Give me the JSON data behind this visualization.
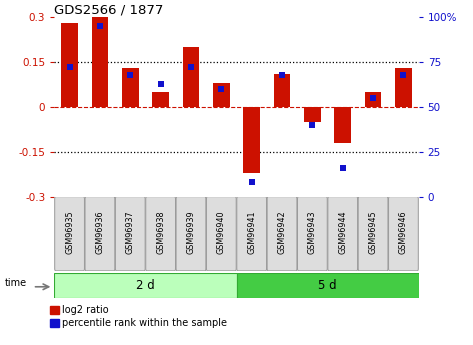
{
  "title": "GDS2566 / 1877",
  "samples": [
    "GSM96935",
    "GSM96936",
    "GSM96937",
    "GSM96938",
    "GSM96939",
    "GSM96940",
    "GSM96941",
    "GSM96942",
    "GSM96943",
    "GSM96944",
    "GSM96945",
    "GSM96946"
  ],
  "log2_ratio": [
    0.28,
    0.3,
    0.13,
    0.05,
    0.2,
    0.08,
    -0.22,
    0.11,
    -0.05,
    -0.12,
    0.05,
    0.13
  ],
  "percentile_rank": [
    72,
    95,
    68,
    63,
    72,
    60,
    8,
    68,
    40,
    16,
    55,
    68
  ],
  "group1_label": "2 d",
  "group2_label": "5 d",
  "group1_count": 6,
  "group2_count": 6,
  "bar_color": "#cc1100",
  "dot_color": "#1111cc",
  "ylim_left": [
    -0.3,
    0.3
  ],
  "ylim_right": [
    0,
    100
  ],
  "yticks_left": [
    -0.3,
    -0.15,
    0.0,
    0.15,
    0.3
  ],
  "yticks_right": [
    0,
    25,
    50,
    75,
    100
  ],
  "hlines_dotted": [
    -0.15,
    0.15
  ],
  "hline_dashed": 0.0,
  "legend_label1": "log2 ratio",
  "legend_label2": "percentile rank within the sample",
  "group_bg1": "#bbffbb",
  "group_bg2": "#44cc44",
  "time_label": "time",
  "bar_width": 0.55
}
